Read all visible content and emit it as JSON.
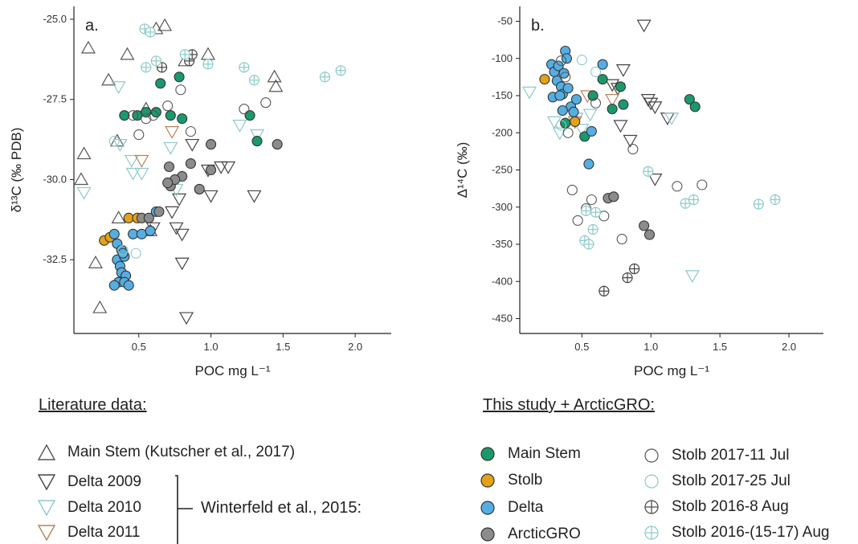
{
  "chart_data": [
    {
      "type": "scatter",
      "panel_label": "a.",
      "ylabel": "δ¹³C (‰ PDB)",
      "xlabel": "POC mg L⁻¹",
      "xlim": [
        0.05,
        2.25
      ],
      "ylim": [
        -34.8,
        -24.6
      ],
      "xticks": [
        0.5,
        1.0,
        1.5,
        2.0
      ],
      "xtick_labels": [
        "0.5",
        "1.0",
        "1.5",
        "2.0"
      ],
      "yticks": [
        -32.5,
        -30.0,
        -27.5,
        -25.0
      ],
      "ytick_labels": [
        "-32.5",
        "-30.0",
        "-27.5",
        "-25.0"
      ],
      "series": [
        {
          "key": "kutscher",
          "values": [
            [
              0.15,
              -25.9
            ],
            [
              0.42,
              -26.1
            ],
            [
              0.62,
              -25.3
            ],
            [
              0.68,
              -25.2
            ],
            [
              0.29,
              -26.9
            ],
            [
              0.35,
              -28.8
            ],
            [
              0.12,
              -29.2
            ],
            [
              0.1,
              -30.0
            ],
            [
              0.2,
              -32.6
            ],
            [
              0.23,
              -34.0
            ],
            [
              0.36,
              -31.2
            ],
            [
              0.55,
              -27.8
            ],
            [
              0.82,
              -26.3
            ],
            [
              0.98,
              -26.1
            ],
            [
              1.44,
              -26.8
            ],
            [
              1.45,
              -27.1
            ],
            [
              0.58,
              -31.6
            ]
          ]
        },
        {
          "key": "delta2009",
          "values": [
            [
              0.98,
              -29.7
            ],
            [
              0.87,
              -28.9
            ],
            [
              1.07,
              -29.6
            ],
            [
              1.12,
              -29.6
            ],
            [
              1.3,
              -30.5
            ],
            [
              0.76,
              -31.5
            ],
            [
              0.8,
              -31.7
            ],
            [
              0.8,
              -32.6
            ],
            [
              0.83,
              -34.3
            ],
            [
              0.78,
              -30.6
            ],
            [
              0.73,
              -31.0
            ],
            [
              1.0,
              -30.5
            ],
            [
              0.6,
              -31.5
            ]
          ]
        },
        {
          "key": "delta2010",
          "values": [
            [
              0.12,
              -30.4
            ],
            [
              0.37,
              -28.9
            ],
            [
              0.36,
              -27.1
            ],
            [
              0.45,
              -29.4
            ],
            [
              0.46,
              -29.8
            ],
            [
              0.52,
              -29.8
            ],
            [
              0.72,
              -29.0
            ],
            [
              0.76,
              -30.3
            ],
            [
              1.2,
              -28.3
            ],
            [
              1.32,
              -28.6
            ]
          ]
        },
        {
          "key": "delta2011",
          "values": [
            [
              0.52,
              -29.4
            ],
            [
              0.73,
              -28.5
            ]
          ]
        },
        {
          "key": "main_stem",
          "values": [
            [
              0.4,
              -28.0
            ],
            [
              0.49,
              -28.0
            ],
            [
              0.55,
              -27.9
            ],
            [
              0.62,
              -27.9
            ],
            [
              0.65,
              -27.0
            ],
            [
              0.78,
              -26.8
            ],
            [
              0.72,
              -28.0
            ],
            [
              0.8,
              -28.1
            ],
            [
              1.27,
              -28.0
            ],
            [
              1.32,
              -28.8
            ]
          ]
        },
        {
          "key": "stolb",
          "values": [
            [
              0.26,
              -31.9
            ],
            [
              0.3,
              -31.8
            ],
            [
              0.43,
              -31.2
            ],
            [
              0.49,
              -31.2
            ]
          ]
        },
        {
          "key": "delta",
          "values": [
            [
              0.33,
              -31.7
            ],
            [
              0.35,
              -32.0
            ],
            [
              0.35,
              -32.5
            ],
            [
              0.38,
              -32.2
            ],
            [
              0.4,
              -32.4
            ],
            [
              0.37,
              -32.7
            ],
            [
              0.38,
              -32.9
            ],
            [
              0.41,
              -33.0
            ],
            [
              0.36,
              -33.2
            ],
            [
              0.4,
              -33.2
            ],
            [
              0.43,
              -33.3
            ],
            [
              0.33,
              -33.3
            ],
            [
              0.46,
              -31.7
            ],
            [
              0.52,
              -31.7
            ],
            [
              0.58,
              -31.6
            ],
            [
              0.62,
              -31.0
            ],
            [
              0.39,
              -32.3
            ]
          ]
        },
        {
          "key": "arcticgro",
          "values": [
            [
              0.52,
              -31.2
            ],
            [
              0.57,
              -31.2
            ],
            [
              0.64,
              -31.0
            ],
            [
              0.72,
              -30.2
            ],
            [
              0.71,
              -29.6
            ],
            [
              0.8,
              -29.9
            ],
            [
              0.86,
              -29.5
            ],
            [
              0.92,
              -30.3
            ],
            [
              1.0,
              -29.7
            ],
            [
              1.0,
              -28.9
            ],
            [
              1.46,
              -28.9
            ],
            [
              0.75,
              -30.0
            ],
            [
              0.7,
              -30.1
            ]
          ]
        },
        {
          "key": "stolb_jul11",
          "values": [
            [
              0.55,
              -28.1
            ],
            [
              0.5,
              -28.6
            ],
            [
              0.6,
              -28.0
            ],
            [
              0.7,
              -27.7
            ],
            [
              0.79,
              -27.2
            ],
            [
              0.86,
              -28.5
            ],
            [
              1.23,
              -27.8
            ],
            [
              1.38,
              -27.6
            ],
            [
              0.46,
              -28.0
            ]
          ]
        },
        {
          "key": "stolb_jul25",
          "values": [
            [
              0.39,
              -32.2
            ],
            [
              0.48,
              -32.3
            ],
            [
              0.33,
              -28.8
            ]
          ]
        },
        {
          "key": "stolb_aug8",
          "values": [
            [
              0.66,
              -26.5
            ],
            [
              0.85,
              -26.3
            ],
            [
              0.87,
              -26.1
            ]
          ]
        },
        {
          "key": "stolb_aug15",
          "values": [
            [
              0.54,
              -25.3
            ],
            [
              0.58,
              -25.4
            ],
            [
              0.55,
              -26.5
            ],
            [
              0.62,
              -26.3
            ],
            [
              0.82,
              -26.1
            ],
            [
              0.98,
              -26.4
            ],
            [
              1.23,
              -26.5
            ],
            [
              1.3,
              -26.9
            ],
            [
              1.79,
              -26.8
            ],
            [
              1.9,
              -26.6
            ]
          ]
        }
      ]
    },
    {
      "type": "scatter",
      "panel_label": "b.",
      "ylabel": "Δ¹⁴C (‰)",
      "xlabel": "POC mg L⁻¹",
      "xlim": [
        0.05,
        2.25
      ],
      "ylim": [
        -470,
        -30
      ],
      "xticks": [
        0.5,
        1.0,
        1.5,
        2.0
      ],
      "xtick_labels": [
        "0.5",
        "1.0",
        "1.5",
        "2.0"
      ],
      "yticks": [
        -450,
        -400,
        -350,
        -300,
        -250,
        -200,
        -150,
        -100,
        -50
      ],
      "ytick_labels": [
        "-450",
        "-400",
        "-350",
        "-300",
        "-250",
        "-200",
        "-150",
        "-100",
        "-50"
      ],
      "series": [
        {
          "key": "kutscher",
          "values": []
        },
        {
          "key": "delta2009",
          "values": [
            [
              0.95,
              -55
            ],
            [
              0.8,
              -115
            ],
            [
              0.76,
              -140
            ],
            [
              0.72,
              -135
            ],
            [
              0.98,
              -155
            ],
            [
              1.0,
              -160
            ],
            [
              1.03,
              -165
            ],
            [
              1.12,
              -180
            ],
            [
              0.85,
              -210
            ],
            [
              1.03,
              -262
            ],
            [
              0.78,
              -190
            ]
          ]
        },
        {
          "key": "delta2010",
          "values": [
            [
              0.12,
              -145
            ],
            [
              0.3,
              -185
            ],
            [
              0.34,
              -200
            ],
            [
              0.46,
              -180
            ],
            [
              0.56,
              -175
            ],
            [
              1.15,
              -180
            ],
            [
              1.3,
              -392
            ],
            [
              0.5,
              -195
            ]
          ]
        },
        {
          "key": "delta2011",
          "values": [
            [
              0.54,
              -150
            ],
            [
              0.72,
              -155
            ],
            [
              0.45,
              -185
            ]
          ]
        },
        {
          "key": "main_stem",
          "values": [
            [
              0.38,
              -187
            ],
            [
              0.52,
              -205
            ],
            [
              0.58,
              -150
            ],
            [
              0.65,
              -128
            ],
            [
              0.72,
              -168
            ],
            [
              0.78,
              -138
            ],
            [
              0.8,
              -162
            ],
            [
              1.28,
              -155
            ],
            [
              1.32,
              -165
            ]
          ]
        },
        {
          "key": "stolb",
          "values": [
            [
              0.23,
              -128
            ],
            [
              0.45,
              -185
            ]
          ]
        },
        {
          "key": "delta",
          "values": [
            [
              0.28,
              -108
            ],
            [
              0.3,
              -118
            ],
            [
              0.32,
              -130
            ],
            [
              0.33,
              -110
            ],
            [
              0.35,
              -138
            ],
            [
              0.36,
              -148
            ],
            [
              0.37,
              -120
            ],
            [
              0.38,
              -90
            ],
            [
              0.39,
              -100
            ],
            [
              0.4,
              -140
            ],
            [
              0.42,
              -165
            ],
            [
              0.36,
              -170
            ],
            [
              0.44,
              -172
            ],
            [
              0.29,
              -152
            ],
            [
              0.57,
              -198
            ],
            [
              0.55,
              -242
            ],
            [
              0.65,
              -108
            ],
            [
              0.34,
              -150
            ],
            [
              0.46,
              -155
            ]
          ]
        },
        {
          "key": "arcticgro",
          "values": [
            [
              0.69,
              -288
            ],
            [
              0.73,
              -286
            ],
            [
              0.95,
              -325
            ],
            [
              0.99,
              -337
            ]
          ]
        },
        {
          "key": "stolb_jul11",
          "values": [
            [
              0.35,
              -103
            ],
            [
              0.4,
              -200
            ],
            [
              0.43,
              -277
            ],
            [
              0.47,
              -318
            ],
            [
              0.53,
              -302
            ],
            [
              0.57,
              -290
            ],
            [
              0.66,
              -312
            ],
            [
              0.79,
              -343
            ],
            [
              0.87,
              -222
            ],
            [
              1.19,
              -272
            ],
            [
              1.37,
              -270
            ],
            [
              0.38,
              -125
            ],
            [
              0.6,
              -160
            ]
          ]
        },
        {
          "key": "stolb_jul25",
          "values": [
            [
              0.5,
              -102
            ],
            [
              0.35,
              -190
            ],
            [
              0.6,
              -118
            ]
          ]
        },
        {
          "key": "stolb_aug8",
          "values": [
            [
              0.66,
              -413
            ],
            [
              0.83,
              -395
            ],
            [
              0.88,
              -383
            ]
          ]
        },
        {
          "key": "stolb_aug15",
          "values": [
            [
              0.53,
              -305
            ],
            [
              0.6,
              -307
            ],
            [
              0.58,
              -330
            ],
            [
              0.52,
              -345
            ],
            [
              0.55,
              -350
            ],
            [
              0.98,
              -252
            ],
            [
              1.25,
              -295
            ],
            [
              1.31,
              -290
            ],
            [
              1.78,
              -296
            ],
            [
              1.9,
              -290
            ]
          ]
        }
      ]
    }
  ],
  "styles": {
    "kutscher": {
      "shape": "triangle-up",
      "fill": "none",
      "stroke": "#555555"
    },
    "delta2009": {
      "shape": "triangle-down",
      "fill": "none",
      "stroke": "#444444"
    },
    "delta2010": {
      "shape": "triangle-down",
      "fill": "none",
      "stroke": "#8cc9c9"
    },
    "delta2011": {
      "shape": "triangle-down",
      "fill": "none",
      "stroke": "#b5835a"
    },
    "main_stem": {
      "shape": "circle",
      "fill": "#1a9a6c",
      "stroke": "#333333"
    },
    "stolb": {
      "shape": "circle",
      "fill": "#e3a21a",
      "stroke": "#333333"
    },
    "delta": {
      "shape": "circle",
      "fill": "#55aee3",
      "stroke": "#333333"
    },
    "arcticgro": {
      "shape": "circle",
      "fill": "#8c8c8c",
      "stroke": "#333333"
    },
    "stolb_jul11": {
      "shape": "circle",
      "fill": "none",
      "stroke": "#555555"
    },
    "stolb_jul25": {
      "shape": "circle",
      "fill": "none",
      "stroke": "#8cc9c9"
    },
    "stolb_aug8": {
      "shape": "circle-plus",
      "fill": "none",
      "stroke": "#444444"
    },
    "stolb_aug15": {
      "shape": "circle-plus",
      "fill": "none",
      "stroke": "#8cc9c9"
    }
  },
  "legend": {
    "literature_title": "Literature data:",
    "study_title": "This study + ArcticGRO:",
    "kutscher": "Main Stem (Kutscher et al., 2017)",
    "delta2009": "Delta 2009",
    "delta2010": "Delta 2010",
    "delta2011": "Delta 2011",
    "winterfeld": "Winterfeld et al., 2015:",
    "main_stem": "Main Stem",
    "stolb": "Stolb",
    "delta": "Delta",
    "arcticgro": "ArcticGRO",
    "stolb_jul11": "Stolb 2017-11 Jul",
    "stolb_jul25": "Stolb 2017-25 Jul",
    "stolb_aug8": "Stolb 2016-8 Aug",
    "stolb_aug15": "Stolb 2016-(15-17) Aug"
  }
}
